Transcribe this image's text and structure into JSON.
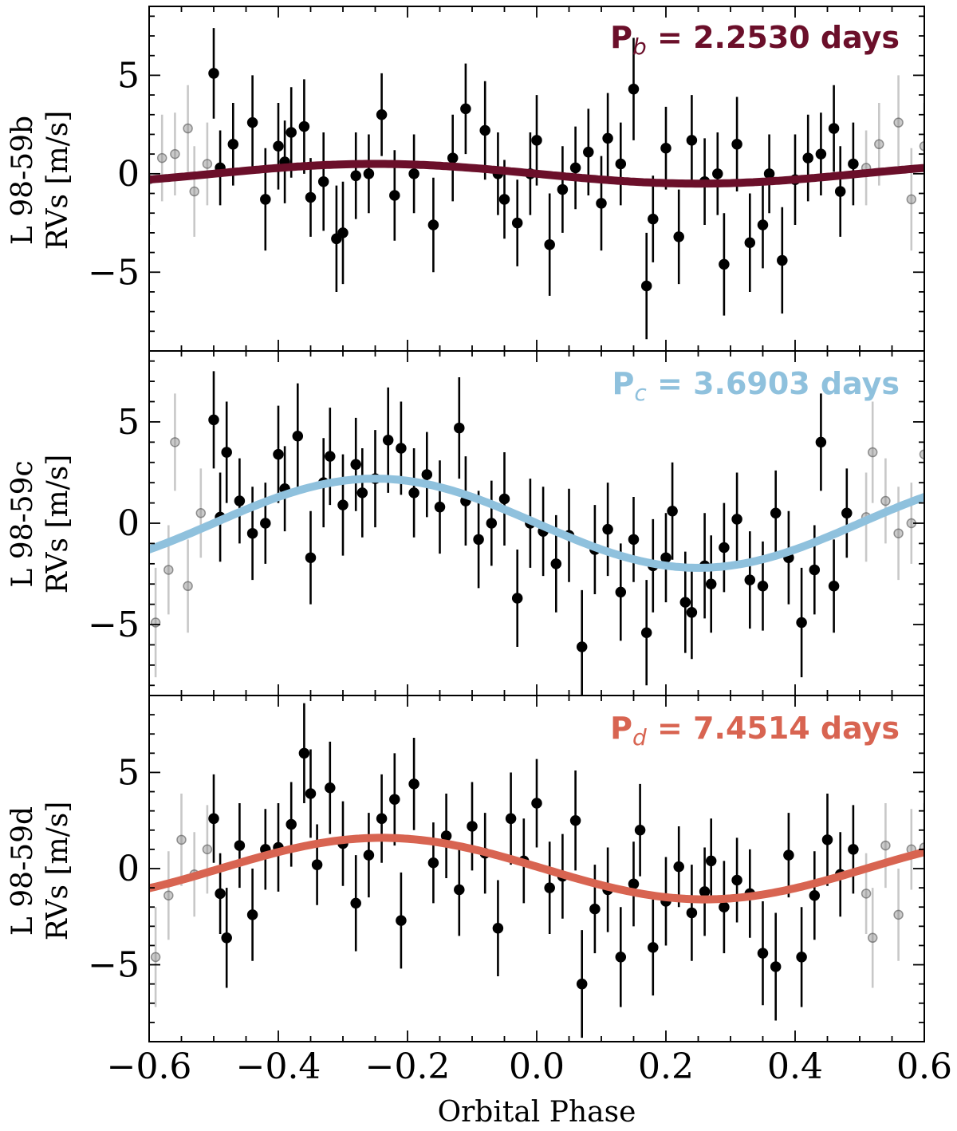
{
  "xlabel": "Orbital Phase",
  "xlim": [
    -0.6,
    0.6
  ],
  "x_ticks": [
    "−0.6",
    "−0.4",
    "−0.2",
    "0.0",
    "0.2",
    "0.4",
    "0.6"
  ],
  "x_tick_values": [
    -0.6,
    -0.4,
    -0.2,
    0.0,
    0.2,
    0.4,
    0.6
  ],
  "panels": [
    {
      "ylabel_line1": "L 98-59b",
      "ylabel_line2": "RVs [m/s]",
      "period_prefix": "P",
      "period_sub": "b",
      "period_rest": " = 2.2530 days"
    },
    {
      "ylabel_line1": "L 98-59c",
      "ylabel_line2": "RVs [m/s]",
      "period_prefix": "P",
      "period_sub": "c",
      "period_rest": " = 3.6903 days"
    },
    {
      "ylabel_line1": "L 98-59d",
      "ylabel_line2": "RVs [m/s]",
      "period_prefix": "P",
      "period_sub": "d",
      "period_rest": " = 7.4514 days"
    }
  ],
  "chart_data": [
    {
      "type": "scatter",
      "title": "",
      "xlabel": "",
      "ylabel": "L 98-59b RVs [m/s]",
      "annotation": "P_b = 2.2530 days",
      "xlim": [
        -0.6,
        0.6
      ],
      "ylim": [
        -9.0,
        8.5
      ],
      "y_ticks": [
        -5,
        0,
        5
      ],
      "y_tick_labels": [
        "−5",
        "0",
        "5"
      ],
      "model": {
        "shape": "sine",
        "amplitude": 0.5,
        "phase_of_maximum": -0.25,
        "period_in_phase": 1.0,
        "color": "#6b0f2a"
      },
      "points": {
        "x": [
          -0.5,
          -0.49,
          -0.47,
          -0.44,
          -0.42,
          -0.4,
          -0.39,
          -0.38,
          -0.36,
          -0.35,
          -0.33,
          -0.31,
          -0.3,
          -0.28,
          -0.26,
          -0.24,
          -0.22,
          -0.19,
          -0.16,
          -0.13,
          -0.11,
          -0.08,
          -0.06,
          -0.05,
          -0.03,
          -0.01,
          0.0,
          0.02,
          0.04,
          0.06,
          0.08,
          0.1,
          0.11,
          0.13,
          0.15,
          0.17,
          0.18,
          0.2,
          0.22,
          0.24,
          0.26,
          0.28,
          0.29,
          0.31,
          0.33,
          0.35,
          0.36,
          0.38,
          0.4,
          0.42,
          0.44,
          0.46,
          0.47,
          0.49
        ],
        "y": [
          5.1,
          0.3,
          1.5,
          2.6,
          -1.3,
          1.4,
          0.6,
          2.1,
          2.4,
          -1.2,
          -0.4,
          -3.3,
          -3.0,
          -0.1,
          0.0,
          3.0,
          -1.1,
          0.0,
          -2.6,
          0.8,
          3.3,
          2.2,
          0.0,
          -1.3,
          -2.5,
          0.0,
          1.7,
          -3.6,
          -0.8,
          0.3,
          1.1,
          -1.5,
          1.8,
          0.5,
          4.3,
          -5.7,
          -2.3,
          1.3,
          -3.2,
          1.7,
          -0.4,
          0.0,
          -4.6,
          1.5,
          -3.5,
          -2.6,
          0.0,
          -4.4,
          -0.3,
          0.8,
          1.0,
          2.3,
          -0.9,
          0.5
        ],
        "err": [
          2.3,
          1.9,
          2.1,
          2.4,
          2.6,
          2.2,
          2.1,
          2.3,
          2.4,
          2.0,
          2.5,
          2.7,
          2.6,
          2.2,
          2.0,
          2.1,
          2.3,
          2.0,
          2.4,
          2.2,
          2.3,
          2.5,
          2.1,
          2.0,
          2.2,
          2.1,
          2.3,
          2.6,
          2.2,
          2.1,
          2.2,
          2.4,
          2.3,
          2.1,
          2.6,
          2.7,
          2.2,
          2.1,
          2.4,
          2.3,
          2.2,
          2.1,
          2.6,
          2.4,
          2.5,
          2.2,
          2.0,
          2.7,
          2.3,
          2.2,
          2.1,
          2.2,
          2.3,
          2.1
        ]
      }
    },
    {
      "type": "scatter",
      "title": "",
      "xlabel": "",
      "ylabel": "L 98-59c RVs [m/s]",
      "annotation": "P_c = 3.6903 days",
      "xlim": [
        -0.6,
        0.6
      ],
      "ylim": [
        -8.5,
        8.5
      ],
      "y_ticks": [
        -5,
        0,
        5
      ],
      "y_tick_labels": [
        "−5",
        "0",
        "5"
      ],
      "model": {
        "shape": "sine",
        "amplitude": 2.2,
        "phase_of_maximum": -0.25,
        "period_in_phase": 1.0,
        "color": "#8fc1dd"
      },
      "points": {
        "x": [
          -0.5,
          -0.49,
          -0.48,
          -0.46,
          -0.44,
          -0.42,
          -0.4,
          -0.39,
          -0.37,
          -0.35,
          -0.33,
          -0.32,
          -0.3,
          -0.28,
          -0.27,
          -0.25,
          -0.23,
          -0.21,
          -0.19,
          -0.17,
          -0.15,
          -0.12,
          -0.11,
          -0.09,
          -0.07,
          -0.05,
          -0.03,
          -0.01,
          0.01,
          0.03,
          0.05,
          0.07,
          0.09,
          0.11,
          0.13,
          0.15,
          0.17,
          0.18,
          0.2,
          0.21,
          0.23,
          0.24,
          0.26,
          0.27,
          0.29,
          0.31,
          0.33,
          0.35,
          0.37,
          0.39,
          0.41,
          0.43,
          0.44,
          0.46,
          0.48
        ],
        "y": [
          5.1,
          0.3,
          3.5,
          1.1,
          -0.5,
          0.0,
          3.4,
          1.7,
          4.3,
          -1.7,
          2.0,
          3.3,
          0.9,
          2.9,
          1.5,
          2.2,
          4.1,
          3.7,
          1.5,
          2.4,
          0.8,
          4.7,
          1.1,
          -0.8,
          0.0,
          1.2,
          -3.7,
          0.0,
          -0.4,
          -2.0,
          -0.6,
          -6.1,
          -1.3,
          -0.3,
          -3.4,
          -0.8,
          -5.4,
          -2.1,
          -1.7,
          0.6,
          -3.9,
          -4.4,
          -2.1,
          -3.0,
          -1.2,
          0.2,
          -2.8,
          -3.1,
          0.5,
          -1.7,
          -4.9,
          -2.3,
          4.0,
          -3.1,
          0.5
        ],
        "err": [
          2.4,
          2.2,
          2.5,
          2.1,
          2.3,
          2.0,
          2.4,
          2.1,
          2.6,
          2.3,
          2.2,
          2.4,
          2.5,
          2.3,
          2.2,
          2.4,
          2.6,
          2.3,
          2.2,
          2.1,
          2.3,
          2.5,
          2.2,
          2.4,
          2.1,
          2.3,
          2.4,
          2.2,
          2.2,
          2.4,
          2.3,
          2.8,
          2.2,
          2.3,
          2.4,
          2.1,
          2.6,
          2.3,
          2.2,
          2.4,
          2.5,
          2.3,
          2.6,
          2.4,
          2.2,
          2.3,
          2.4,
          2.2,
          2.1,
          2.3,
          2.7,
          2.2,
          2.4,
          2.3,
          2.2
        ]
      }
    },
    {
      "type": "scatter",
      "title": "",
      "xlabel": "Orbital Phase",
      "ylabel": "L 98-59d RVs [m/s]",
      "annotation": "P_d = 7.4514 days",
      "xlim": [
        -0.6,
        0.6
      ],
      "ylim": [
        -9.0,
        9.0
      ],
      "y_ticks": [
        -5,
        0,
        5
      ],
      "y_tick_labels": [
        "−5",
        "0",
        "5"
      ],
      "model": {
        "shape": "sine",
        "amplitude": 1.6,
        "phase_of_maximum": -0.24,
        "period_in_phase": 1.0,
        "color": "#d86451"
      },
      "points": {
        "x": [
          -0.5,
          -0.49,
          -0.48,
          -0.46,
          -0.44,
          -0.42,
          -0.4,
          -0.38,
          -0.36,
          -0.35,
          -0.34,
          -0.32,
          -0.3,
          -0.28,
          -0.26,
          -0.24,
          -0.22,
          -0.21,
          -0.19,
          -0.16,
          -0.14,
          -0.12,
          -0.1,
          -0.08,
          -0.06,
          -0.04,
          -0.02,
          0.0,
          0.02,
          0.04,
          0.06,
          0.07,
          0.09,
          0.11,
          0.13,
          0.15,
          0.16,
          0.18,
          0.2,
          0.22,
          0.24,
          0.26,
          0.27,
          0.29,
          0.31,
          0.33,
          0.35,
          0.37,
          0.39,
          0.41,
          0.43,
          0.45,
          0.47,
          0.49
        ],
        "y": [
          2.6,
          -1.3,
          -3.6,
          1.2,
          -2.4,
          1.0,
          1.1,
          2.3,
          6.0,
          3.9,
          0.2,
          4.2,
          1.3,
          -1.8,
          0.7,
          2.6,
          3.6,
          -2.7,
          4.4,
          0.3,
          1.7,
          -1.1,
          2.2,
          0.8,
          -3.1,
          2.6,
          0.4,
          3.4,
          -1.0,
          -0.4,
          2.5,
          -6.0,
          -2.1,
          -1.1,
          -4.6,
          -0.8,
          2.0,
          -4.1,
          -1.7,
          0.1,
          -2.3,
          -1.2,
          0.4,
          -2.0,
          -0.6,
          -1.3,
          -4.4,
          -5.1,
          0.7,
          -4.6,
          -1.4,
          1.5,
          -0.3,
          1.0
        ],
        "err": [
          2.3,
          2.1,
          2.6,
          2.2,
          2.4,
          2.1,
          2.3,
          2.2,
          2.6,
          2.3,
          2.1,
          2.4,
          2.2,
          2.5,
          2.2,
          2.3,
          2.4,
          2.5,
          2.4,
          2.1,
          2.2,
          2.4,
          2.3,
          2.1,
          2.5,
          2.4,
          2.2,
          2.3,
          2.4,
          2.2,
          2.6,
          2.8,
          2.3,
          2.2,
          2.6,
          2.2,
          2.4,
          2.5,
          2.3,
          2.1,
          2.5,
          2.3,
          2.2,
          2.4,
          2.2,
          2.3,
          2.7,
          2.8,
          2.2,
          2.6,
          2.3,
          2.4,
          2.2,
          2.3
        ]
      }
    }
  ]
}
